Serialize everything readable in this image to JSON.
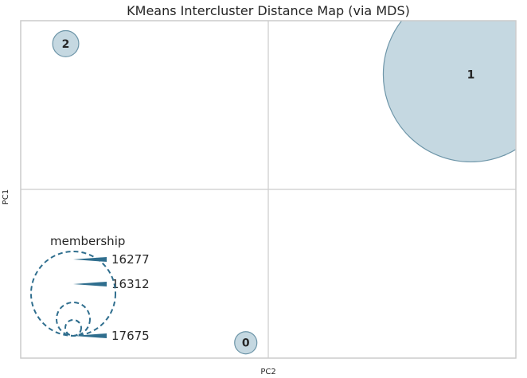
{
  "chart_data": {
    "type": "scatter",
    "title": "KMeans Intercluster Distance Map (via MDS)",
    "xlabel": "PC2",
    "ylabel": "PC1",
    "grid": true,
    "clusters": [
      {
        "label": "0",
        "x": -0.1,
        "y": -1.0,
        "membership": 16277
      },
      {
        "label": "1",
        "x": 0.9,
        "y": 0.75,
        "membership": 17675
      },
      {
        "label": "2",
        "x": -0.9,
        "y": 0.95,
        "membership": 16312
      }
    ],
    "legend": {
      "title": "membership",
      "entries": [
        "16277",
        "16312",
        "17675"
      ],
      "position": "lower-left"
    },
    "colors": {
      "fill": "#c5d8e1",
      "edge": "#6d95a8",
      "legend": "#2f6e8e",
      "grid": "#cccccc",
      "frame": "#cccccc"
    }
  }
}
